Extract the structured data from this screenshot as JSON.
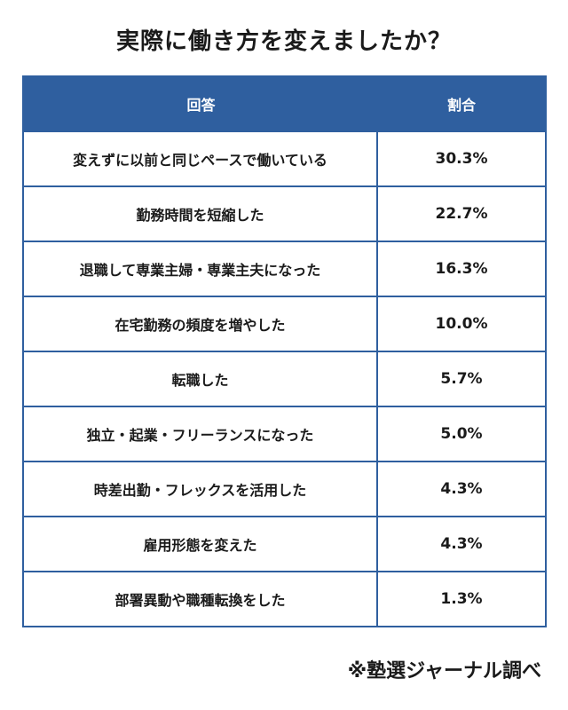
{
  "title": "実際に働き方を変えましたか？",
  "table": {
    "headers": {
      "answer": "回答",
      "ratio": "割合"
    },
    "rows": [
      {
        "answer": "変えずに以前と同じペースで働いている",
        "ratio": "30.3%"
      },
      {
        "answer": "勤務時間を短縮した",
        "ratio": "22.7%"
      },
      {
        "answer": "退職して専業主婦・専業主夫になった",
        "ratio": "16.3%"
      },
      {
        "answer": "在宅勤務の頻度を増やした",
        "ratio": "10.0%"
      },
      {
        "answer": "転職した",
        "ratio": "5.7%"
      },
      {
        "answer": "独立・起業・フリーランスになった",
        "ratio": "5.0%"
      },
      {
        "answer": "時差出勤・フレックスを活用した",
        "ratio": "4.3%"
      },
      {
        "answer": "雇用形態を変えた",
        "ratio": "4.3%"
      },
      {
        "answer": "部署異動や職種転換をした",
        "ratio": "1.3%"
      }
    ]
  },
  "source": "※塾選ジャーナル調べ",
  "colors": {
    "header_bg": "#2f5f9f",
    "header_text": "#ffffff",
    "border": "#2f5f9f"
  }
}
